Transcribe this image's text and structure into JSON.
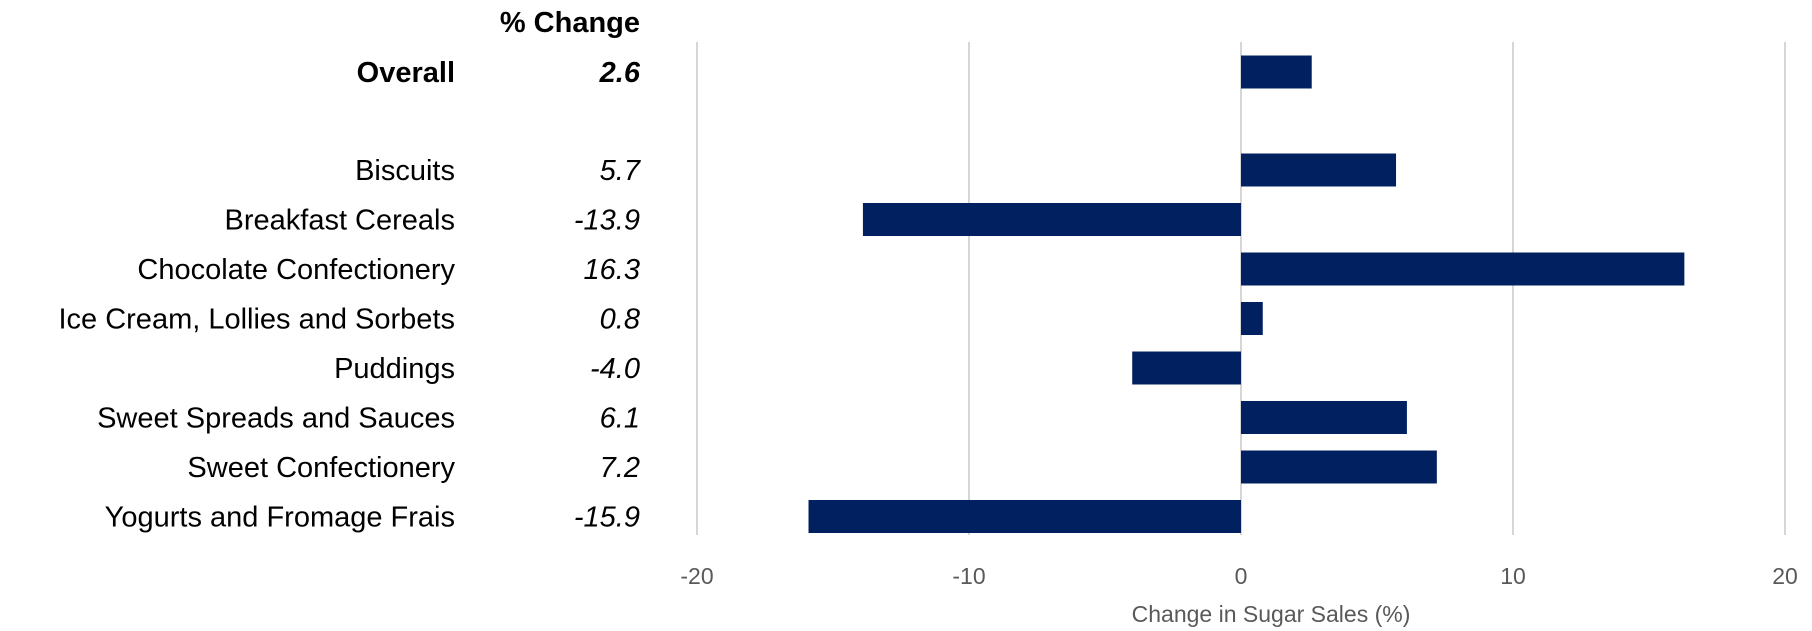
{
  "chart_data": {
    "type": "bar",
    "orientation": "horizontal",
    "column_header": "% Change",
    "categories": [
      "Overall",
      "Biscuits",
      "Breakfast Cereals",
      "Chocolate Confectionery",
      "Ice Cream, Lollies and Sorbets",
      "Puddings",
      "Sweet Spreads and Sauces",
      "Sweet Confectionery",
      "Yogurts and Fromage Frais"
    ],
    "values": [
      2.6,
      5.7,
      -13.9,
      16.3,
      0.8,
      -4.0,
      6.1,
      7.2,
      -15.9
    ],
    "value_labels": [
      "2.6",
      "5.7",
      "-13.9",
      "16.3",
      "0.8",
      "-4.0",
      "6.1",
      "7.2",
      "-15.9"
    ],
    "bold_categories": [
      "Overall"
    ],
    "xlabel": "Change in Sugar Sales (%)",
    "ylabel": "",
    "xlim": [
      -20,
      20
    ],
    "xticks": [
      -20,
      -10,
      0,
      10,
      20
    ],
    "grid": "vertical",
    "legend": "none",
    "bar_color": "#002060"
  }
}
